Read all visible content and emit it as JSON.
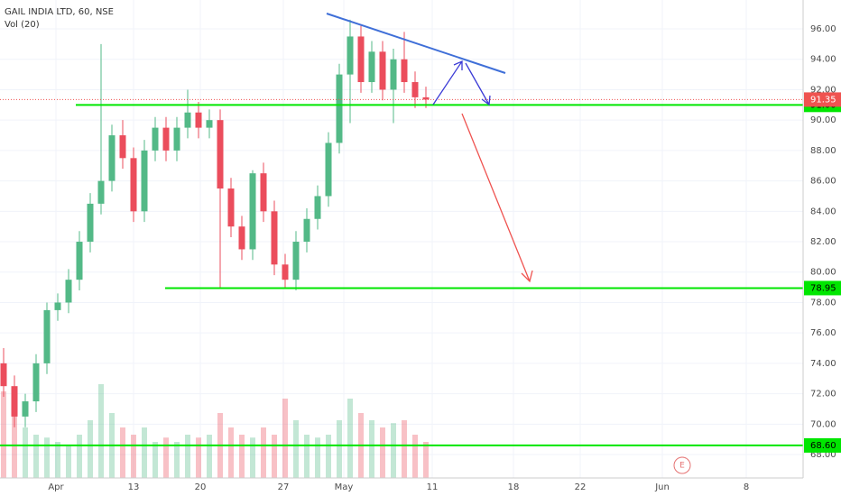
{
  "chart_data": {
    "type": "candlestick",
    "title": "GAIL INDIA LTD, 60, NSE",
    "subtitle": "Vol (20)",
    "x_labels": [
      "Apr",
      "13",
      "20",
      "27",
      "May",
      "11",
      "18",
      "22",
      "Jun",
      "8"
    ],
    "open": [
      74,
      72.5,
      70.5,
      71.5,
      74,
      77.5,
      78,
      79.5,
      82,
      84.5,
      86,
      89,
      87.5,
      84,
      88,
      89.5,
      88,
      89.5,
      90.5,
      89.5,
      90,
      85.5,
      83,
      81.5,
      86.5,
      84,
      80.5,
      79.5,
      82,
      83.5,
      85,
      88.5,
      93,
      95.5,
      92.5,
      94.5,
      92,
      94,
      92.5,
      91.5
    ],
    "high": [
      75,
      73.2,
      72,
      74.6,
      78,
      78.6,
      80.2,
      82.7,
      85.2,
      95,
      89.7,
      90,
      88.2,
      88.7,
      90.2,
      90.2,
      90.2,
      92,
      91.2,
      90.7,
      90.7,
      86.2,
      83.7,
      86.7,
      87.2,
      84.7,
      81.2,
      82.7,
      84.2,
      85.7,
      89.2,
      93.7,
      96.6,
      96.2,
      95.2,
      95.2,
      94.7,
      95.8,
      93.2,
      92.2
    ],
    "low": [
      71.8,
      69.8,
      69.8,
      70.8,
      73.3,
      76.8,
      77.3,
      78.8,
      81.3,
      83.8,
      85.3,
      86.8,
      83.3,
      83.3,
      87.3,
      87.3,
      87.3,
      88.8,
      88.8,
      88.8,
      79,
      82.3,
      80.8,
      80.8,
      83.3,
      79.8,
      78.95,
      78.8,
      81.3,
      82.8,
      84.3,
      87.8,
      89.8,
      91.8,
      91.8,
      91.3,
      89.8,
      91.8,
      90.8,
      90.8
    ],
    "close": [
      72.5,
      70.5,
      71.5,
      74,
      77.5,
      78,
      79.5,
      82,
      84.5,
      86,
      89,
      87.5,
      84,
      88,
      89.5,
      88,
      89.5,
      90.5,
      89.5,
      90,
      85.5,
      83,
      81.5,
      86.5,
      84,
      80.5,
      79.5,
      82,
      83.5,
      85,
      88.5,
      93,
      95.5,
      92.5,
      94.5,
      92,
      94,
      92.5,
      91.5,
      91.35
    ],
    "volume": [
      60,
      45,
      35,
      30,
      28,
      25,
      22,
      30,
      40,
      65,
      45,
      35,
      30,
      35,
      25,
      28,
      25,
      30,
      28,
      30,
      45,
      35,
      30,
      28,
      35,
      30,
      55,
      40,
      30,
      28,
      30,
      40,
      55,
      45,
      40,
      35,
      38,
      40,
      30,
      25
    ],
    "volume_ylim": [
      0,
      100
    ],
    "ylim": [
      66.46,
      97.9
    ],
    "yticks": [
      {
        "value": 68,
        "label": "68.00"
      },
      {
        "value": 70,
        "label": "70.00"
      },
      {
        "value": 72,
        "label": "72.00"
      },
      {
        "value": 74,
        "label": "74.00"
      },
      {
        "value": 76,
        "label": "76.00"
      },
      {
        "value": 78,
        "label": "78.00"
      },
      {
        "value": 80,
        "label": "80.00"
      },
      {
        "value": 82,
        "label": "82.00"
      },
      {
        "value": 84,
        "label": "84.00"
      },
      {
        "value": 86,
        "label": "86.00"
      },
      {
        "value": 88,
        "label": "88.00"
      },
      {
        "value": 90,
        "label": "90.00"
      },
      {
        "value": 92,
        "label": "92.00"
      },
      {
        "value": 94,
        "label": "94.00"
      },
      {
        "value": 96,
        "label": "96.00"
      }
    ],
    "levels": [
      {
        "value": 91,
        "label": "91.00"
      },
      {
        "value": 78.95,
        "label": "78.95"
      },
      {
        "value": 68.6,
        "label": "68.60"
      }
    ],
    "level_color": "#00e600",
    "last_price": {
      "value": 91.35,
      "label": "91.35"
    },
    "last_price_color": "#ef5350",
    "up_color": "#53b987",
    "down_color": "#eb4d5c",
    "event_label": "E"
  }
}
